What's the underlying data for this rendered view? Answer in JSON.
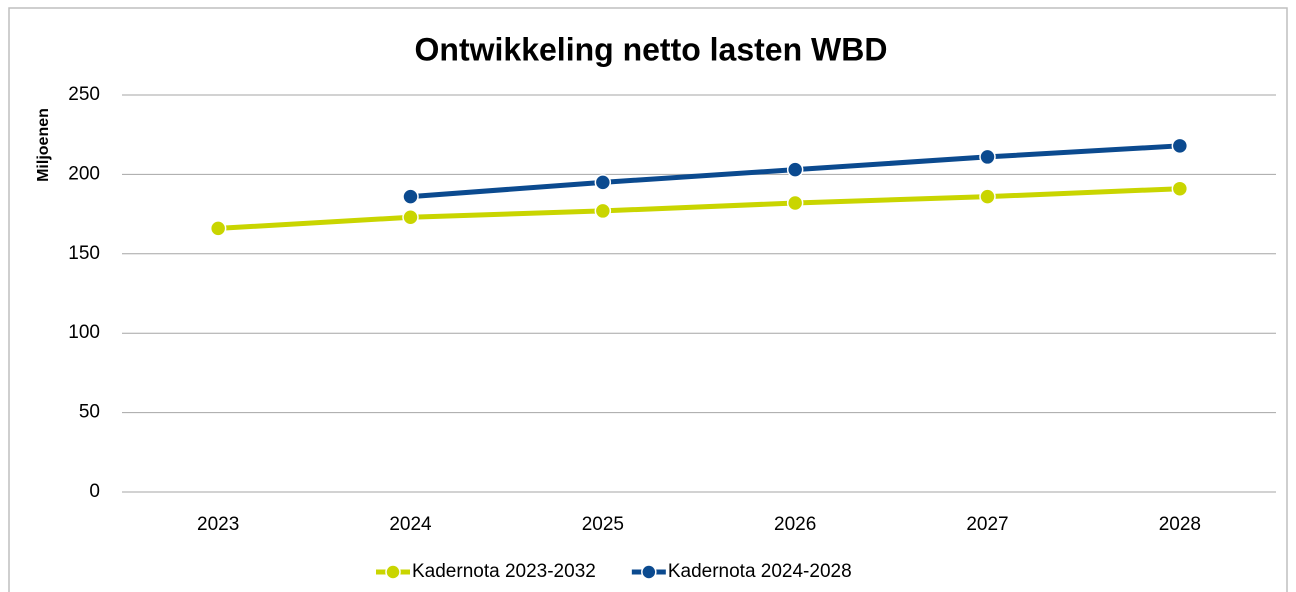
{
  "chart_data": {
    "type": "line",
    "title": "Ontwikkeling netto lasten WBD",
    "y_label": "Miljoenen",
    "categories": [
      "2023",
      "2024",
      "2025",
      "2026",
      "2027",
      "2028"
    ],
    "series": [
      {
        "name": "Kadernota 2023-2032",
        "color": "#c9d500",
        "values": [
          166,
          173,
          177,
          182,
          186,
          191
        ]
      },
      {
        "name": "Kadernota 2024-2028",
        "color": "#0b4a8f",
        "values": [
          null,
          186,
          195,
          203,
          211,
          218
        ]
      }
    ],
    "ylim": [
      0,
      250
    ],
    "yticks": [
      0,
      50,
      100,
      150,
      200,
      250
    ],
    "grid": true,
    "legend": "bottom"
  }
}
